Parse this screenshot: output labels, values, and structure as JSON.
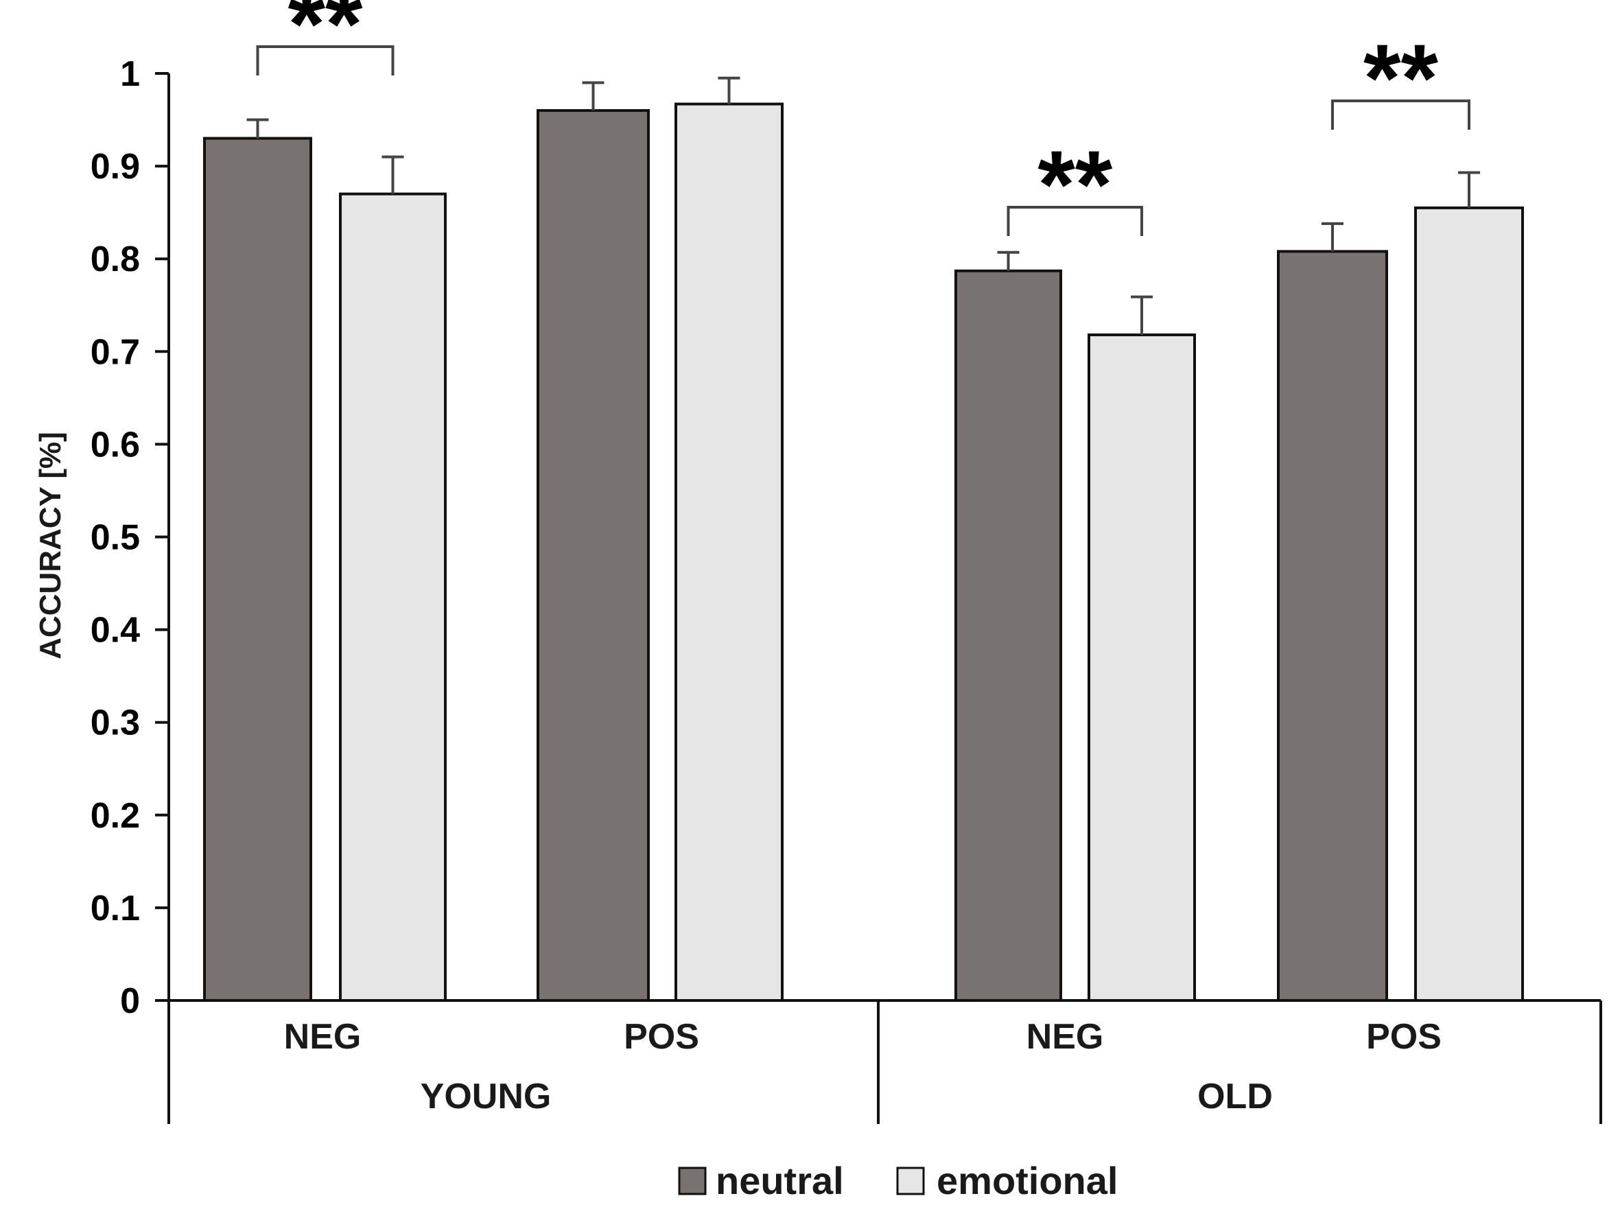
{
  "chart_data": {
    "type": "bar",
    "title": "",
    "xlabel": "",
    "ylabel": "ACCURACY [%]",
    "ylim": [
      0,
      1
    ],
    "yticks": [
      "0",
      "0.1",
      "0.2",
      "0.3",
      "0.4",
      "0.5",
      "0.6",
      "0.7",
      "0.8",
      "0.9",
      "1"
    ],
    "groups": [
      {
        "label": "YOUNG",
        "subcategories": [
          {
            "label": "NEG",
            "neutral": 0.93,
            "neutral_err": 0.02,
            "emotional": 0.87,
            "emotional_err": 0.04,
            "significance": "**"
          },
          {
            "label": "POS",
            "neutral": 0.96,
            "neutral_err": 0.03,
            "emotional": 0.967,
            "emotional_err": 0.028,
            "significance": ""
          }
        ]
      },
      {
        "label": "OLD",
        "subcategories": [
          {
            "label": "NEG",
            "neutral": 0.787,
            "neutral_err": 0.02,
            "emotional": 0.718,
            "emotional_err": 0.041,
            "significance": "**"
          },
          {
            "label": "POS",
            "neutral": 0.808,
            "neutral_err": 0.03,
            "emotional": 0.855,
            "emotional_err": 0.038,
            "significance": "**"
          }
        ]
      }
    ],
    "series": [
      {
        "name": "neutral",
        "color": "#787370"
      },
      {
        "name": "emotional",
        "color": "#e6e6e6"
      }
    ],
    "legend_position": "bottom-center",
    "grid": false
  }
}
